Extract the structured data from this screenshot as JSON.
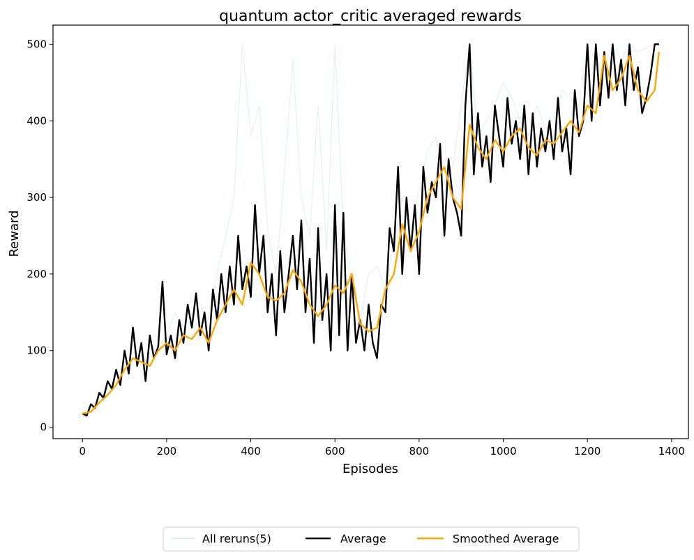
{
  "chart_data": {
    "type": "line",
    "title": "quantum actor_critic averaged rewards",
    "xlabel": "Episodes",
    "ylabel": "Reward",
    "xlim": [
      -70,
      1440
    ],
    "ylim": [
      -15,
      525
    ],
    "xticks": [
      0,
      200,
      400,
      600,
      800,
      1000,
      1200,
      1400
    ],
    "yticks": [
      0,
      100,
      200,
      300,
      400,
      500
    ],
    "grid": false,
    "legend": {
      "placement": "bottom-center, below plot",
      "entries": [
        "All reruns(5)",
        "Average",
        "Smoothed Average"
      ]
    },
    "series": [
      {
        "name": "All reruns(5)",
        "color": "#add8e6",
        "x": [
          0,
          20,
          40,
          60,
          80,
          100,
          120,
          140,
          160,
          180,
          200,
          220,
          240,
          260,
          280,
          300,
          320,
          340,
          360,
          380,
          400,
          420,
          440,
          460,
          480,
          500,
          520,
          540,
          560,
          580,
          600,
          620,
          640,
          660,
          680,
          700,
          720,
          740,
          760,
          780,
          800,
          820,
          840,
          860,
          880,
          900,
          920,
          940,
          960,
          980,
          1000,
          1020,
          1040,
          1060,
          1080,
          1100,
          1120,
          1140,
          1160,
          1180,
          1200,
          1220,
          1240,
          1260,
          1280,
          1300,
          1320,
          1340,
          1360
        ],
        "values": [
          15,
          22,
          35,
          48,
          60,
          72,
          88,
          95,
          80,
          105,
          120,
          150,
          130,
          170,
          160,
          140,
          200,
          250,
          300,
          500,
          380,
          420,
          260,
          200,
          330,
          480,
          300,
          250,
          420,
          230,
          500,
          260,
          180,
          140,
          200,
          210,
          180,
          240,
          300,
          260,
          310,
          360,
          380,
          320,
          340,
          420,
          500,
          380,
          400,
          420,
          450,
          430,
          400,
          380,
          420,
          390,
          400,
          440,
          430,
          420,
          500,
          480,
          470,
          500,
          480,
          500,
          490,
          495,
          500
        ]
      },
      {
        "name": "Average",
        "color": "#000000",
        "x": [
          0,
          10,
          20,
          30,
          40,
          50,
          60,
          70,
          80,
          90,
          100,
          110,
          120,
          130,
          140,
          150,
          160,
          170,
          180,
          190,
          200,
          210,
          220,
          230,
          240,
          250,
          260,
          270,
          280,
          290,
          300,
          310,
          320,
          330,
          340,
          350,
          360,
          370,
          380,
          390,
          400,
          410,
          420,
          430,
          440,
          450,
          460,
          470,
          480,
          490,
          500,
          510,
          520,
          530,
          540,
          550,
          560,
          570,
          580,
          590,
          600,
          610,
          620,
          630,
          640,
          650,
          660,
          670,
          680,
          690,
          700,
          710,
          720,
          730,
          740,
          750,
          760,
          770,
          780,
          790,
          800,
          810,
          820,
          830,
          840,
          850,
          860,
          870,
          880,
          890,
          900,
          910,
          920,
          930,
          940,
          950,
          960,
          970,
          980,
          990,
          1000,
          1010,
          1020,
          1030,
          1040,
          1050,
          1060,
          1070,
          1080,
          1090,
          1100,
          1110,
          1120,
          1130,
          1140,
          1150,
          1160,
          1170,
          1180,
          1190,
          1200,
          1210,
          1220,
          1230,
          1240,
          1250,
          1260,
          1270,
          1280,
          1290,
          1300,
          1310,
          1320,
          1330,
          1340,
          1350,
          1360,
          1370
        ],
        "values": [
          18,
          15,
          30,
          25,
          45,
          38,
          60,
          50,
          75,
          55,
          100,
          70,
          130,
          80,
          110,
          60,
          120,
          90,
          105,
          190,
          95,
          120,
          90,
          140,
          110,
          160,
          130,
          175,
          120,
          150,
          100,
          180,
          140,
          200,
          150,
          210,
          160,
          250,
          180,
          210,
          170,
          290,
          200,
          250,
          150,
          200,
          120,
          230,
          150,
          200,
          250,
          180,
          270,
          150,
          220,
          110,
          260,
          140,
          200,
          100,
          290,
          120,
          280,
          100,
          200,
          110,
          140,
          100,
          160,
          110,
          90,
          160,
          150,
          260,
          230,
          340,
          200,
          300,
          230,
          290,
          200,
          340,
          280,
          320,
          300,
          370,
          250,
          350,
          300,
          280,
          250,
          420,
          500,
          330,
          410,
          340,
          380,
          320,
          420,
          380,
          340,
          430,
          370,
          400,
          350,
          420,
          330,
          410,
          340,
          390,
          360,
          400,
          350,
          430,
          360,
          390,
          330,
          440,
          380,
          400,
          500,
          400,
          500,
          420,
          490,
          430,
          500,
          440,
          480,
          420,
          500,
          440,
          470,
          410,
          430,
          460,
          500,
          500
        ]
      },
      {
        "name": "Smoothed Average",
        "color": "#ffa500",
        "x": [
          0,
          20,
          40,
          60,
          80,
          100,
          120,
          140,
          160,
          180,
          200,
          220,
          240,
          260,
          280,
          300,
          320,
          340,
          360,
          380,
          400,
          420,
          440,
          460,
          480,
          500,
          520,
          540,
          560,
          580,
          600,
          620,
          640,
          660,
          680,
          700,
          720,
          740,
          760,
          780,
          800,
          820,
          840,
          860,
          880,
          900,
          920,
          940,
          960,
          980,
          1000,
          1020,
          1040,
          1060,
          1080,
          1100,
          1120,
          1140,
          1160,
          1180,
          1200,
          1220,
          1240,
          1260,
          1280,
          1300,
          1320,
          1340,
          1360,
          1370
        ],
        "values": [
          18,
          20,
          32,
          42,
          55,
          75,
          90,
          85,
          80,
          100,
          110,
          100,
          120,
          115,
          130,
          110,
          140,
          160,
          180,
          160,
          215,
          200,
          170,
          165,
          175,
          205,
          190,
          160,
          145,
          160,
          185,
          175,
          200,
          135,
          125,
          130,
          180,
          200,
          265,
          230,
          255,
          300,
          320,
          340,
          300,
          285,
          395,
          365,
          350,
          375,
          360,
          380,
          390,
          365,
          355,
          375,
          370,
          385,
          400,
          385,
          420,
          410,
          485,
          440,
          455,
          485,
          440,
          425,
          440,
          490
        ]
      }
    ]
  }
}
